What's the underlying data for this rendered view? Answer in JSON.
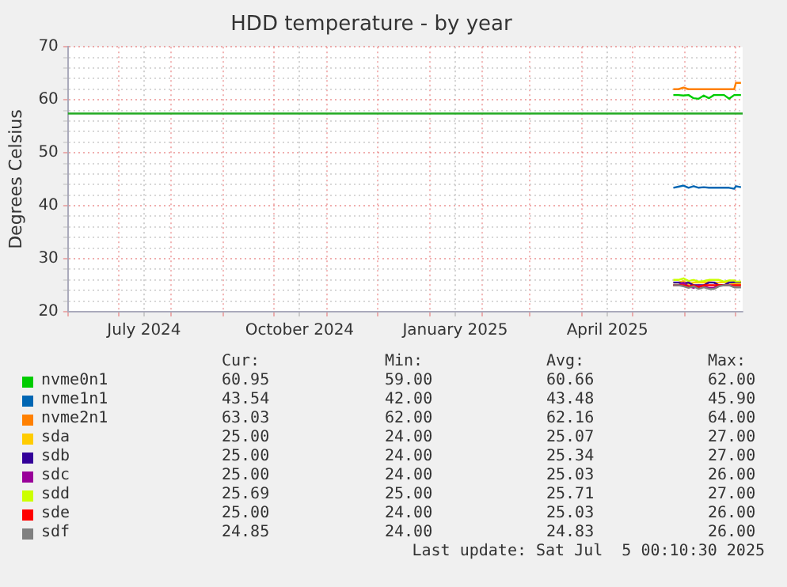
{
  "chart_data": {
    "type": "line",
    "title": "HDD temperature - by year",
    "ylabel": "Degrees Celsius",
    "x": [
      "2025-05-25",
      "2025-05-28",
      "2025-05-31",
      "2025-06-03",
      "2025-06-06",
      "2025-06-09",
      "2025-06-12",
      "2025-06-15",
      "2025-06-18",
      "2025-06-21",
      "2025-06-24",
      "2025-06-27",
      "2025-06-30",
      "2025-07-01",
      "2025-07-04"
    ],
    "xlim": [
      "2024-06-01",
      "2025-07-05"
    ],
    "xticks": [
      {
        "value": "2024-06-01",
        "label": null
      },
      {
        "value": "2024-07-01",
        "label": null
      },
      {
        "value": "2024-07-16",
        "label": "July 2024"
      },
      {
        "value": "2024-08-01",
        "label": null
      },
      {
        "value": "2024-09-01",
        "label": null
      },
      {
        "value": "2024-10-01",
        "label": null
      },
      {
        "value": "2024-10-16",
        "label": "October 2024"
      },
      {
        "value": "2024-11-01",
        "label": null
      },
      {
        "value": "2024-12-01",
        "label": null
      },
      {
        "value": "2025-01-01",
        "label": null
      },
      {
        "value": "2025-01-16",
        "label": "January 2025"
      },
      {
        "value": "2025-02-01",
        "label": null
      },
      {
        "value": "2025-03-01",
        "label": null
      },
      {
        "value": "2025-04-01",
        "label": null
      },
      {
        "value": "2025-04-16",
        "label": "April 2025"
      },
      {
        "value": "2025-05-01",
        "label": null
      },
      {
        "value": "2025-06-01",
        "label": null
      },
      {
        "value": "2025-07-01",
        "label": null
      }
    ],
    "ylim": [
      20,
      70
    ],
    "yticks": [
      20,
      {
        "value": 22,
        "label": null
      },
      {
        "value": 24,
        "label": null
      },
      {
        "value": 26,
        "label": null
      },
      {
        "value": 28,
        "label": null
      },
      30,
      {
        "value": 32,
        "label": null
      },
      {
        "value": 34,
        "label": null
      },
      {
        "value": 36,
        "label": null
      },
      {
        "value": 38,
        "label": null
      },
      40,
      {
        "value": 42,
        "label": null
      },
      {
        "value": 44,
        "label": null
      },
      {
        "value": 46,
        "label": null
      },
      {
        "value": 48,
        "label": null
      },
      50,
      {
        "value": 52,
        "label": null
      },
      {
        "value": 54,
        "label": null
      },
      {
        "value": 56,
        "label": null
      },
      {
        "value": 58,
        "label": null
      },
      60,
      {
        "value": 62,
        "label": null
      },
      {
        "value": 64,
        "label": null
      },
      {
        "value": 66,
        "label": null
      },
      {
        "value": 68,
        "label": null
      },
      70
    ],
    "grid": true,
    "legend": "bottom",
    "marker": "none",
    "line_style": "solid",
    "ref_lines": [
      {
        "axis": "y",
        "value": 57.4,
        "color": "#22aa22"
      }
    ],
    "series": [
      {
        "name": "nvme0n1",
        "color": "#00cc00",
        "values": [
          60.9,
          60.9,
          60.8,
          60.9,
          60.3,
          60.2,
          60.8,
          60.3,
          60.9,
          60.9,
          60.9,
          60.2,
          60.9,
          60.9,
          60.9
        ]
      },
      {
        "name": "nvme1n1",
        "color": "#0066b3",
        "values": [
          43.4,
          43.6,
          43.8,
          43.4,
          43.7,
          43.4,
          43.5,
          43.4,
          43.4,
          43.4,
          43.4,
          43.4,
          43.2,
          43.7,
          43.5
        ]
      },
      {
        "name": "nvme2n1",
        "color": "#ff8000",
        "values": [
          62,
          62,
          62.3,
          62,
          62,
          62,
          62,
          62,
          62,
          62,
          62,
          62,
          62,
          63.2,
          63.2
        ]
      },
      {
        "name": "sda",
        "color": "#ffcc00",
        "values": [
          25.5,
          25.5,
          25.8,
          25.2,
          25.5,
          25.5,
          25.5,
          25.6,
          25.5,
          25.5,
          25.6,
          25.5,
          25.3,
          25.3,
          25.3
        ]
      },
      {
        "name": "sdb",
        "color": "#330099",
        "values": [
          25.5,
          25.5,
          25.3,
          25.5,
          25,
          25,
          25,
          25.5,
          25.5,
          25,
          25,
          25.5,
          25.6,
          25.6,
          25.6
        ]
      },
      {
        "name": "sdc",
        "color": "#990099",
        "values": [
          25,
          25,
          25.5,
          24.8,
          24.5,
          25,
          24.8,
          24.5,
          24.5,
          25,
          25,
          null,
          null,
          null,
          null
        ]
      },
      {
        "name": "sdd",
        "color": "#ccff00",
        "values": [
          26,
          26,
          26.3,
          25.8,
          26,
          25.7,
          25.8,
          26,
          26,
          26,
          25.7,
          25.9,
          25.9,
          25.7,
          25.7
        ]
      },
      {
        "name": "sde",
        "color": "#ff0000",
        "values": [
          25,
          25,
          25,
          24.8,
          25,
          24.6,
          25,
          25,
          25,
          25,
          25,
          25,
          25,
          25,
          25
        ]
      },
      {
        "name": "sdf",
        "color": "#808080",
        "values": [
          25,
          25,
          24.8,
          24.5,
          24.8,
          24.3,
          24.6,
          24.3,
          24.3,
          24.8,
          25,
          25,
          24.6,
          24.6,
          24.6
        ]
      }
    ],
    "annotations": [
      "Cur:",
      "Min:",
      "Avg:",
      "Max:",
      "60.95",
      "59.00",
      "60.66",
      "62.00",
      "43.54",
      "42.00",
      "43.48",
      "45.90",
      "63.03",
      "62.00",
      "62.16",
      "64.00",
      "25.00",
      "24.00",
      "25.07",
      "27.00",
      "25.00",
      "24.00",
      "25.34",
      "27.00",
      "25.00",
      "24.00",
      "25.03",
      "26.00",
      "25.69",
      "25.00",
      "25.71",
      "27.00",
      "25.00",
      "24.00",
      "25.03",
      "26.00",
      "24.85",
      "24.00",
      "24.83",
      "26.00",
      "Last update: Sat Jul  5 00:10:30 2025"
    ]
  }
}
